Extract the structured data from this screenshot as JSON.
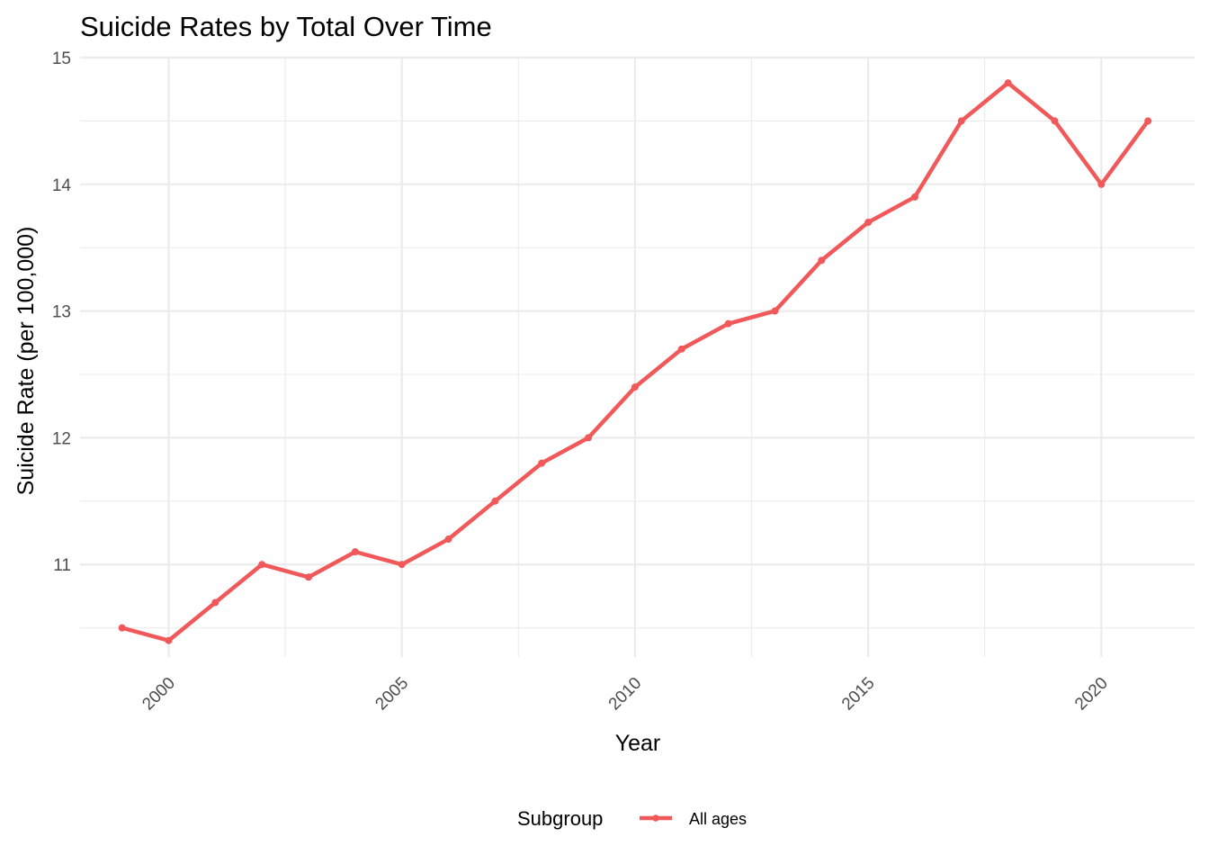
{
  "chart_data": {
    "type": "line",
    "title": "Suicide Rates by Total Over Time",
    "xlabel": "Year",
    "ylabel": "Suicide Rate (per 100,000)",
    "xlim": [
      1998.1,
      2022.0
    ],
    "ylim": [
      10.27,
      15.0
    ],
    "x_ticks": [
      2000,
      2005,
      2010,
      2015,
      2020
    ],
    "y_ticks": [
      11,
      12,
      13,
      14,
      15
    ],
    "grid": true,
    "legend": {
      "title": "Subgroup",
      "position": "bottom"
    },
    "series": [
      {
        "name": "All ages",
        "color": "#F0585A",
        "x": [
          1999,
          2000,
          2001,
          2002,
          2003,
          2004,
          2005,
          2006,
          2007,
          2008,
          2009,
          2010,
          2011,
          2012,
          2013,
          2014,
          2015,
          2016,
          2017,
          2018,
          2019,
          2020,
          2021
        ],
        "y": [
          10.5,
          10.4,
          10.7,
          11.0,
          10.9,
          11.1,
          11.0,
          11.2,
          11.5,
          11.8,
          12.0,
          12.4,
          12.7,
          12.9,
          13.0,
          13.4,
          13.7,
          13.9,
          14.5,
          14.8,
          14.5,
          14.0,
          14.5
        ]
      }
    ]
  }
}
